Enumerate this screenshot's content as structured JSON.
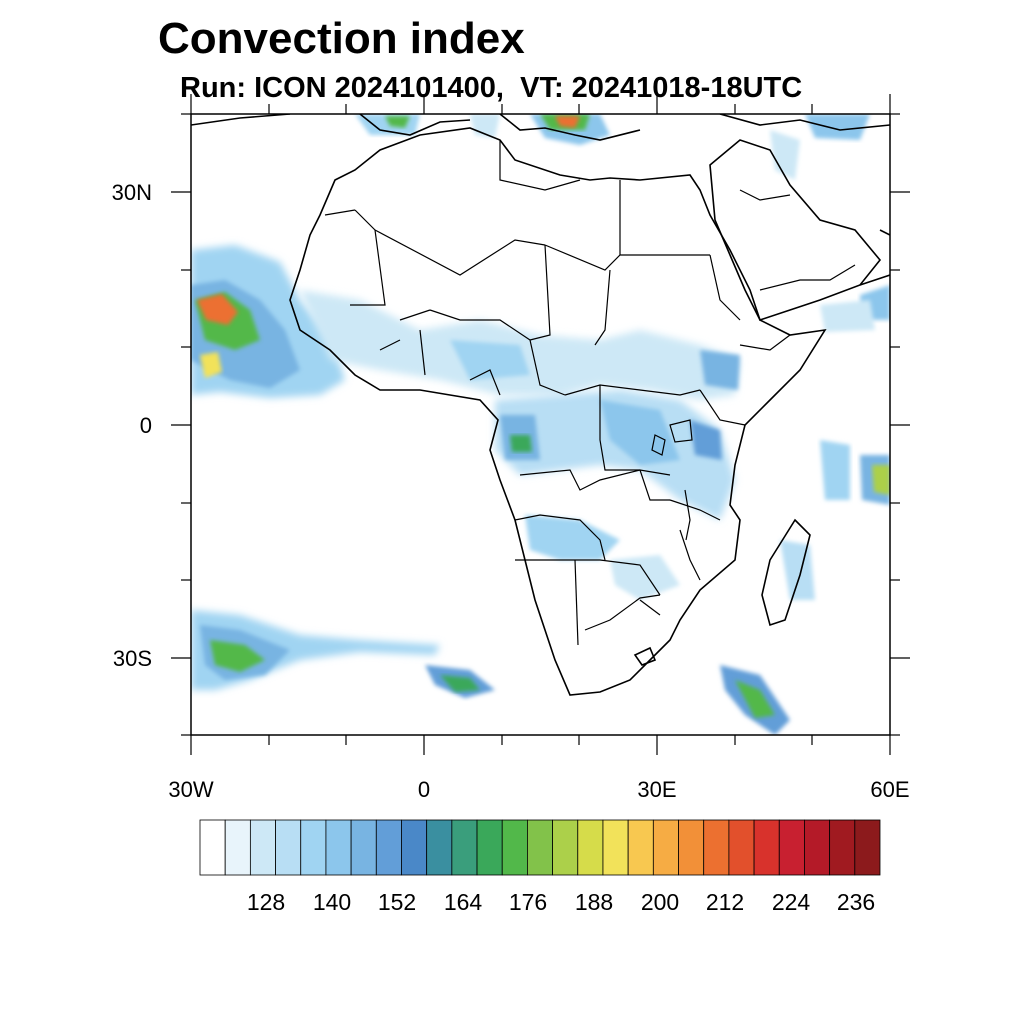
{
  "title": "Convection index",
  "subtitle": "Run: ICON 2024101400,  VT: 20241018-18UTC",
  "axes": {
    "lat_labels": [
      "30N",
      "0",
      "30S"
    ],
    "lon_labels": [
      "30W",
      "0",
      "30E",
      "60E"
    ]
  },
  "colorbar": {
    "labels": [
      "128",
      "140",
      "152",
      "164",
      "176",
      "188",
      "200",
      "212",
      "224",
      "236"
    ],
    "colors": [
      "#ffffff",
      "#e8f4fb",
      "#cde8f6",
      "#b8def4",
      "#a0d4f2",
      "#8cc6ec",
      "#78b4e2",
      "#629ed8",
      "#4a88c8",
      "#3a8fa0",
      "#3a9e7c",
      "#3aa85a",
      "#52b84a",
      "#82c24a",
      "#acd04a",
      "#d6dc4a",
      "#f2e25a",
      "#f8c850",
      "#f6ac44",
      "#f29038",
      "#ec7030",
      "#e2502c",
      "#d8322c",
      "#c82030",
      "#b41a28",
      "#a01a20",
      "#8c1a1c"
    ]
  },
  "chart_data": {
    "type": "heatmap",
    "title": "Convection index",
    "subtitle": "Run: ICON 2024101400,  VT: 20241018-18UTC",
    "x_range": [
      -30,
      60
    ],
    "y_range": [
      -40,
      40
    ],
    "x_ticks": [
      -30,
      0,
      30,
      60
    ],
    "y_ticks": [
      30,
      0,
      -30
    ],
    "colorbar_levels": [
      128,
      140,
      152,
      164,
      176,
      188,
      200,
      212,
      224,
      236
    ]
  }
}
